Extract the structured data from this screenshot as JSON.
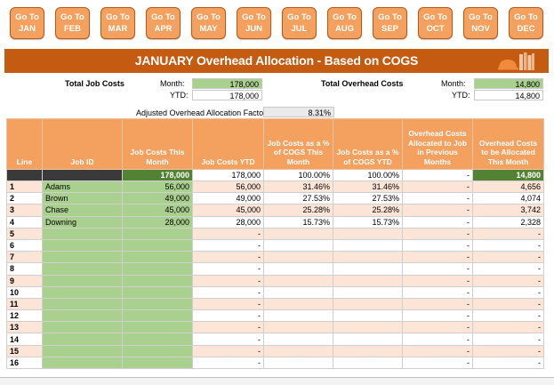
{
  "months": [
    {
      "go": "Go To",
      "name": "JAN"
    },
    {
      "go": "Go To",
      "name": "FEB"
    },
    {
      "go": "Go To",
      "name": "MAR"
    },
    {
      "go": "Go To",
      "name": "APR"
    },
    {
      "go": "Go To",
      "name": "MAY"
    },
    {
      "go": "Go To",
      "name": "JUN"
    },
    {
      "go": "Go To",
      "name": "JUL"
    },
    {
      "go": "Go To",
      "name": "AUG"
    },
    {
      "go": "Go To",
      "name": "SEP"
    },
    {
      "go": "Go To",
      "name": "OCT"
    },
    {
      "go": "Go To",
      "name": "NOV"
    },
    {
      "go": "Go To",
      "name": "DEC"
    }
  ],
  "title": "JANUARY Overhead Allocation - Based on COGS",
  "summary": {
    "total_job_costs_label": "Total Job Costs",
    "month_label": "Month:",
    "ytd_label": "YTD:",
    "job_month": "178,000",
    "job_ytd": "178,000",
    "total_overhead_label": "Total Overhead Costs",
    "overhead_month": "14,800",
    "overhead_ytd": "14,800",
    "factor_label": "Adjusted Overhead Allocation Factor",
    "factor_value": "8.31%"
  },
  "table": {
    "headers": [
      "Line",
      "Job ID",
      "Job Costs This Month",
      "Job Costs YTD",
      "Job Costs as a % of COGS This Month",
      "Job Costs as a % of COGS YTD",
      "Overhead Costs Allocated to Job in Previous Months",
      "Overhead Costs to be Allocated This Month"
    ],
    "totals": [
      "178,000",
      "178,000",
      "100.00%",
      "100.00%",
      "-",
      "14,800"
    ],
    "rows": [
      [
        "1",
        "Adams",
        "56,000",
        "56,000",
        "31.46%",
        "31.46%",
        "-",
        "4,656"
      ],
      [
        "2",
        "Brown",
        "49,000",
        "49,000",
        "27.53%",
        "27.53%",
        "-",
        "4,074"
      ],
      [
        "3",
        "Chase",
        "45,000",
        "45,000",
        "25.28%",
        "25.28%",
        "-",
        "3,742"
      ],
      [
        "4",
        "Downing",
        "28,000",
        "28,000",
        "15.73%",
        "15.73%",
        "-",
        "2,328"
      ],
      [
        "5",
        "",
        "",
        "-",
        "",
        "",
        "-",
        "-"
      ],
      [
        "6",
        "",
        "",
        "-",
        "",
        "",
        "-",
        "-"
      ],
      [
        "7",
        "",
        "",
        "-",
        "",
        "",
        "-",
        "-"
      ],
      [
        "8",
        "",
        "",
        "-",
        "",
        "",
        "-",
        "-"
      ],
      [
        "9",
        "",
        "",
        "-",
        "",
        "",
        "-",
        "-"
      ],
      [
        "10",
        "",
        "",
        "-",
        "",
        "",
        "-",
        "-"
      ],
      [
        "11",
        "",
        "",
        "-",
        "",
        "",
        "-",
        "-"
      ],
      [
        "12",
        "",
        "",
        "-",
        "",
        "",
        "-",
        "-"
      ],
      [
        "13",
        "",
        "",
        "-",
        "",
        "",
        "-",
        "-"
      ],
      [
        "14",
        "",
        "",
        "-",
        "",
        "",
        "-",
        "-"
      ],
      [
        "15",
        "",
        "",
        "-",
        "",
        "",
        "-",
        "-"
      ],
      [
        "16",
        "",
        "",
        "-",
        "",
        "",
        "-",
        "-"
      ]
    ]
  },
  "colors": {
    "accent": "#c55a11",
    "header": "#f4a05f",
    "input_green": "#a9d08e",
    "band": "#fce4d6",
    "total_green": "#548235"
  },
  "icons": {
    "title_decoration": "books-helmet-icon"
  }
}
